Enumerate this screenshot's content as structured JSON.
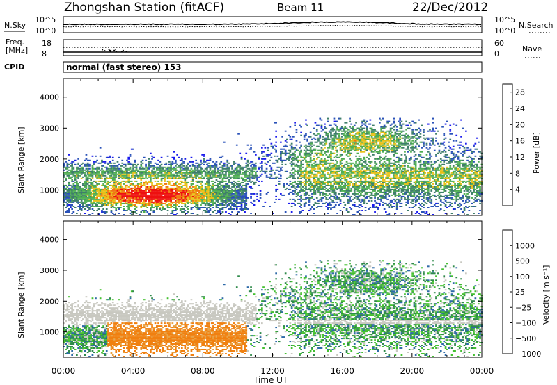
{
  "header": {
    "title": "Zhongshan Station (fitACF)",
    "beam": "Beam 11",
    "date": "22/Dec/2012"
  },
  "sky_panel": {
    "left_label": "N.Sky",
    "right_label": "N.Search",
    "left_ticks": [
      "10^5",
      "10^0"
    ],
    "right_ticks": [
      "10^5",
      "10^0"
    ]
  },
  "freq_panel": {
    "left_label_line1": "Freq.",
    "left_label_line2": "[MHz]",
    "right_label": "Nave",
    "left_ticks": [
      "18",
      "8"
    ],
    "right_ticks": [
      "60",
      "0"
    ]
  },
  "cpid": {
    "label": "CPID",
    "value": "normal (fast stereo) 153"
  },
  "chart_data": [
    {
      "type": "heatmap",
      "name": "power",
      "xlabel": "Time UT",
      "ylabel": "Slant Range [km]",
      "x_ticks": [
        "00:00",
        "04:00",
        "08:00",
        "12:00",
        "16:00",
        "20:00",
        "00:00"
      ],
      "xlim": [
        0,
        24
      ],
      "ylim": [
        180,
        4600
      ],
      "y_ticks": [
        1000,
        2000,
        3000,
        4000
      ],
      "colorbar": {
        "label": "Power [dB]",
        "ticks": [
          4,
          8,
          12,
          16,
          20,
          24,
          28
        ],
        "range": [
          0,
          30
        ],
        "colors": [
          "#1a1aee",
          "#2a52b8",
          "#3e7e6a",
          "#4fae52",
          "#e8c018",
          "#f07810",
          "#ee1010"
        ]
      }
    },
    {
      "type": "heatmap",
      "name": "velocity",
      "xlabel": "Time UT",
      "ylabel": "Slant Range [km]",
      "x_ticks": [
        "00:00",
        "04:00",
        "08:00",
        "12:00",
        "16:00",
        "20:00",
        "00:00"
      ],
      "xlim": [
        0,
        24
      ],
      "ylim": [
        180,
        4600
      ],
      "y_ticks": [
        1000,
        2000,
        3000,
        4000
      ],
      "colorbar": {
        "label": "Velocity [m s⁻¹]",
        "ticks": [
          "1000",
          "500",
          "100",
          "25",
          "−25",
          "−100",
          "−500",
          "−1000"
        ],
        "colors": [
          "#1a3ad8",
          "#2e6aa8",
          "#2f8a4a",
          "#44c030",
          "#c8c8c0",
          "#e8a040",
          "#f08010",
          "#ee1010"
        ]
      }
    }
  ]
}
